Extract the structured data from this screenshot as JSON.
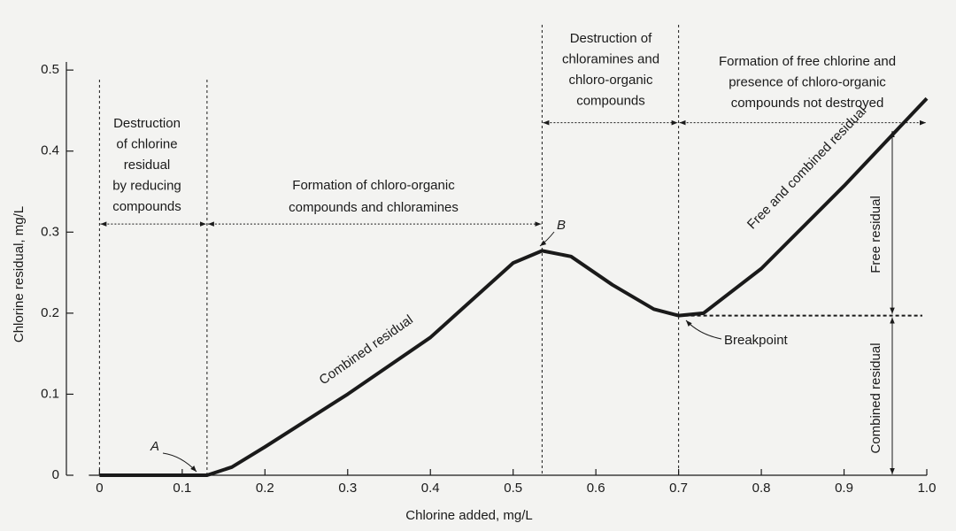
{
  "chart_data": {
    "type": "line",
    "x_label": "Chlorine added, mg/L",
    "y_label": "Chlorine residual, mg/L",
    "xlim": [
      -0.04,
      1.0
    ],
    "ylim": [
      0,
      0.51
    ],
    "xticks": [
      0,
      0.1,
      0.2,
      0.3,
      0.4,
      0.5,
      0.6,
      0.7,
      0.8,
      0.9,
      {
        "value": 1,
        "label": "1.0"
      }
    ],
    "yticks": [
      0,
      0.1,
      0.2,
      0.3,
      0.4,
      0.5
    ],
    "series": [
      {
        "name": "Combined residual",
        "color": "#1a1a1a",
        "x": [
          0,
          0.1,
          0.13,
          0.16,
          0.2,
          0.3,
          0.4,
          0.5,
          0.535,
          0.57,
          0.62,
          0.67,
          0.7,
          0.73,
          0.8,
          0.9,
          1.0
        ],
        "values": [
          0,
          0,
          0,
          0.01,
          0.035,
          0.1,
          0.17,
          0.262,
          0.277,
          0.27,
          0.235,
          0.205,
          0.197,
          0.2,
          0.255,
          0.357,
          0.465
        ]
      }
    ],
    "region_boundaries": [
      0,
      0.13,
      0.535,
      0.7
    ],
    "regions": [
      {
        "from": 0,
        "to": 0.13,
        "level": 0.31,
        "lines": [
          "Destruction",
          "of chlorine",
          "residual",
          "by reducing",
          "compounds"
        ]
      },
      {
        "from": 0.13,
        "to": 0.535,
        "level": 0.31,
        "lines": [
          "Formation of chloro-organic",
          "compounds and chloramines"
        ]
      },
      {
        "from": 0.535,
        "to": 0.7,
        "level": 0.435,
        "lines": [
          "Destruction of",
          "chloramines and",
          "chloro-organic",
          "compounds"
        ]
      },
      {
        "from": 0.7,
        "to": 1.0,
        "level": 0.435,
        "lines": [
          "Formation of free chlorine and",
          "presence of chloro-organic",
          "compounds not destroyed"
        ]
      }
    ],
    "breakpoint_level": 0.197,
    "annotations": {
      "point_a": "A",
      "point_b": "B",
      "breakpoint": "Breakpoint",
      "combined_curve": "Combined residual",
      "free_combined_curve": "Free and combined residual",
      "free_residual": "Free residual",
      "combined_residual": "Combined residual"
    }
  }
}
